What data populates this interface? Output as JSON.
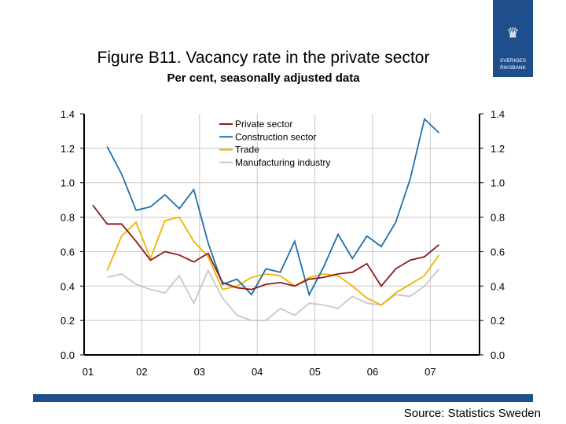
{
  "header": {
    "title": "Figure B11. Vacancy rate in the private sector",
    "subtitle": "Per cent, seasonally adjusted data"
  },
  "logo": {
    "line1": "SVERIGES",
    "line2": "RIKSBANK"
  },
  "footer": {
    "source": "Source: Statistics Sweden",
    "bar_color": "#1f4e8c"
  },
  "chart_data": {
    "type": "line",
    "title": "Figure B11. Vacancy rate in the private sector",
    "subtitle": "Per cent, seasonally adjusted data",
    "x_tick_labels": [
      "01",
      "02",
      "03",
      "04",
      "05",
      "06",
      "07"
    ],
    "x_frequency": "quarterly",
    "x_start": "2001Q1",
    "ylim": [
      0,
      1.4
    ],
    "y_ticks": [
      "0.0",
      "0.2",
      "0.4",
      "0.6",
      "0.8",
      "1.0",
      "1.2",
      "1.4"
    ],
    "y_axis": "both sides",
    "grid": true,
    "legend": "top-center",
    "series": [
      {
        "name": "Private sector",
        "color": "#8b1a1a",
        "start": "2001Q1",
        "values": [
          0.87,
          0.76,
          0.76,
          0.66,
          0.55,
          0.6,
          0.58,
          0.54,
          0.59,
          0.42,
          0.39,
          0.38,
          0.41,
          0.42,
          0.4,
          0.44,
          0.45,
          0.47,
          0.48,
          0.53,
          0.4,
          0.5,
          0.55,
          0.57,
          0.64
        ]
      },
      {
        "name": "Construction sector",
        "color": "#1f6fa8",
        "start": "2001Q2",
        "values": [
          1.21,
          1.05,
          0.84,
          0.86,
          0.93,
          0.85,
          0.96,
          0.65,
          0.41,
          0.44,
          0.35,
          0.5,
          0.48,
          0.66,
          0.35,
          0.51,
          0.7,
          0.56,
          0.69,
          0.63,
          0.77,
          1.02,
          1.37,
          1.29
        ]
      },
      {
        "name": "Trade",
        "color": "#f0b400",
        "start": "2001Q2",
        "values": [
          0.49,
          0.69,
          0.77,
          0.56,
          0.78,
          0.8,
          0.66,
          0.57,
          0.38,
          0.4,
          0.45,
          0.47,
          0.46,
          0.4,
          0.45,
          0.47,
          0.46,
          0.4,
          0.33,
          0.29,
          0.36,
          0.41,
          0.46,
          0.58
        ]
      },
      {
        "name": "Manufacturing industry",
        "color": "#c8c8c8",
        "start": "2001Q2",
        "values": [
          0.45,
          0.47,
          0.41,
          0.38,
          0.36,
          0.46,
          0.3,
          0.49,
          0.33,
          0.23,
          0.2,
          0.2,
          0.27,
          0.23,
          0.3,
          0.29,
          0.27,
          0.34,
          0.3,
          0.29,
          0.35,
          0.34,
          0.4,
          0.5
        ]
      }
    ]
  }
}
